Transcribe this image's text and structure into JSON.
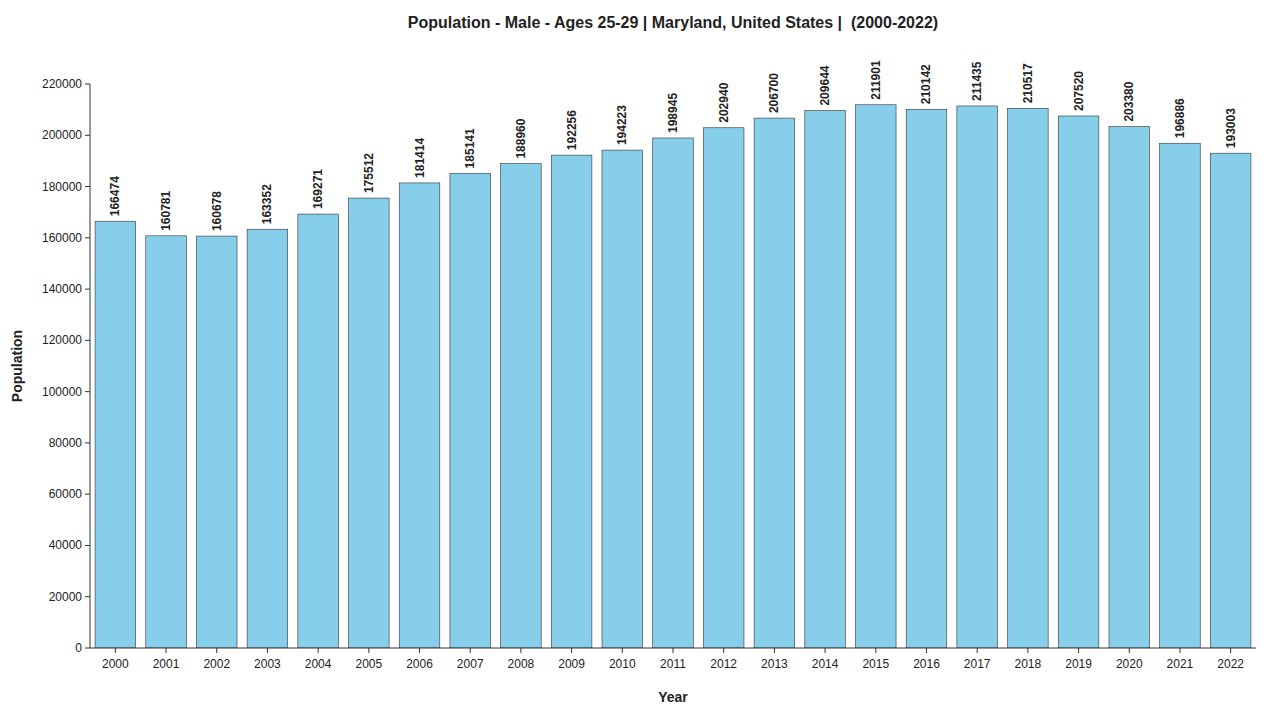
{
  "chart_data": {
    "type": "bar",
    "title": "Population - Male - Ages 25-29 | Maryland, United States |  (2000-2022)",
    "x_label": "Year",
    "y_label": "Population",
    "categories": [
      "2000",
      "2001",
      "2002",
      "2003",
      "2004",
      "2005",
      "2006",
      "2007",
      "2008",
      "2009",
      "2010",
      "2011",
      "2012",
      "2013",
      "2014",
      "2015",
      "2016",
      "2017",
      "2018",
      "2019",
      "2020",
      "2021",
      "2022"
    ],
    "values": [
      166474,
      160781,
      160678,
      163352,
      169271,
      175512,
      181414,
      185141,
      188960,
      192256,
      194223,
      198945,
      202940,
      206700,
      209644,
      211901,
      210142,
      211435,
      210517,
      207520,
      203380,
      196886,
      193003
    ],
    "color": "#87CEEB",
    "ylim": [
      0,
      220000
    ],
    "yticks": [
      0,
      20000,
      40000,
      60000,
      80000,
      100000,
      120000,
      140000,
      160000,
      180000,
      200000,
      220000
    ],
    "grid": false,
    "data_labels": true
  }
}
